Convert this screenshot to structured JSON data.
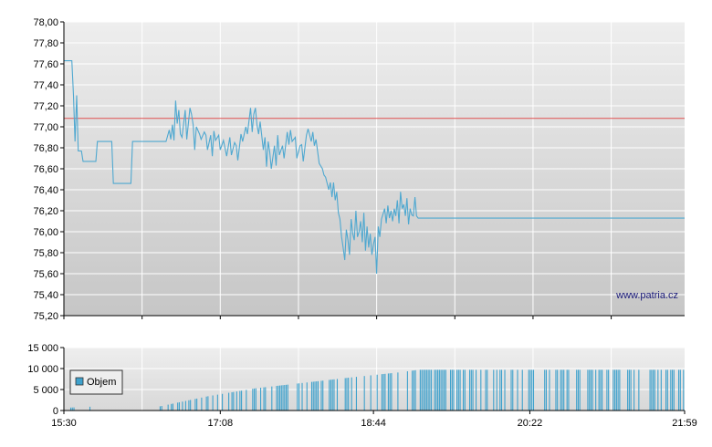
{
  "watermark": "www.patria.cz",
  "colors": {
    "price_line": "#4fa8d0",
    "reference_line": "#e05050",
    "volume_bar": "#3ea1cc",
    "grid": "#ffffff",
    "plot_bg_top": "#ececec",
    "plot_bg_bottom": "#c8c8c8"
  },
  "chart_data": [
    {
      "type": "line",
      "title": "",
      "xlabel": "",
      "ylabel": "",
      "ylim": [
        75.2,
        78.0
      ],
      "y_ticks": [
        "78,00",
        "77,80",
        "77,60",
        "77,40",
        "77,20",
        "77,00",
        "76,80",
        "76,60",
        "76,40",
        "76,20",
        "76,00",
        "75,80",
        "75,60",
        "75,40",
        "75,20"
      ],
      "reference_value": 77.08,
      "x_range": [
        "15:30",
        "21:59"
      ],
      "grid": true,
      "series": [
        {
          "values": [
            [
              "15:30",
              77.63
            ],
            [
              "15:35",
              77.63
            ],
            [
              "15:36",
              77.3
            ],
            [
              "15:37",
              76.86
            ],
            [
              "15:38",
              77.3
            ],
            [
              "15:39",
              76.77
            ],
            [
              "15:41",
              76.77
            ],
            [
              "15:42",
              76.67
            ],
            [
              "15:50",
              76.67
            ],
            [
              "15:51",
              76.86
            ],
            [
              "16:00",
              76.86
            ],
            [
              "16:01",
              76.46
            ],
            [
              "16:12",
              76.46
            ],
            [
              "16:13",
              76.86
            ],
            [
              "16:34",
              76.86
            ],
            [
              "16:36",
              76.97
            ],
            [
              "16:37",
              76.88
            ],
            [
              "16:38",
              77.02
            ],
            [
              "16:39",
              76.87
            ],
            [
              "16:40",
              77.25
            ],
            [
              "16:41",
              77.03
            ],
            [
              "16:42",
              77.16
            ],
            [
              "16:43",
              76.93
            ],
            [
              "16:44",
              76.9
            ],
            [
              "16:46",
              77.16
            ],
            [
              "16:47",
              76.88
            ],
            [
              "16:49",
              77.18
            ],
            [
              "16:50",
              77.12
            ],
            [
              "16:51",
              77.02
            ],
            [
              "16:52",
              76.78
            ],
            [
              "16:53",
              77.0
            ],
            [
              "16:55",
              76.93
            ],
            [
              "16:56",
              76.88
            ],
            [
              "16:58",
              76.95
            ],
            [
              "16:59",
              76.92
            ],
            [
              "17:00",
              76.78
            ],
            [
              "17:02",
              76.92
            ],
            [
              "17:03",
              76.72
            ],
            [
              "17:04",
              76.96
            ],
            [
              "17:05",
              76.87
            ],
            [
              "17:07",
              76.92
            ],
            [
              "17:08",
              76.78
            ],
            [
              "17:10",
              76.87
            ],
            [
              "17:12",
              76.72
            ],
            [
              "17:14",
              76.9
            ],
            [
              "17:15",
              76.73
            ],
            [
              "17:17",
              76.85
            ],
            [
              "17:18",
              76.82
            ],
            [
              "17:19",
              76.68
            ],
            [
              "17:21",
              76.93
            ],
            [
              "17:22",
              76.86
            ],
            [
              "17:24",
              77.0
            ],
            [
              "17:25",
              76.93
            ],
            [
              "17:27",
              77.18
            ],
            [
              "17:28",
              76.95
            ],
            [
              "17:29",
              77.12
            ],
            [
              "17:30",
              77.18
            ],
            [
              "17:31",
              77.02
            ],
            [
              "17:32",
              76.93
            ],
            [
              "17:33",
              77.05
            ],
            [
              "17:35",
              76.78
            ],
            [
              "17:36",
              76.9
            ],
            [
              "17:37",
              76.62
            ],
            [
              "17:38",
              76.86
            ],
            [
              "17:39",
              76.76
            ],
            [
              "17:40",
              76.6
            ],
            [
              "17:42",
              76.82
            ],
            [
              "17:43",
              76.63
            ],
            [
              "17:44",
              76.92
            ],
            [
              "17:45",
              76.73
            ],
            [
              "17:47",
              76.82
            ],
            [
              "17:48",
              76.7
            ],
            [
              "17:50",
              76.95
            ],
            [
              "17:51",
              76.83
            ],
            [
              "17:52",
              76.97
            ],
            [
              "17:53",
              76.86
            ],
            [
              "17:55",
              76.9
            ],
            [
              "17:56",
              76.7
            ],
            [
              "17:58",
              76.82
            ],
            [
              "17:59",
              76.83
            ],
            [
              "18:00",
              76.67
            ],
            [
              "18:02",
              76.92
            ],
            [
              "18:03",
              76.98
            ],
            [
              "18:05",
              76.86
            ],
            [
              "18:06",
              76.95
            ],
            [
              "18:07",
              76.82
            ],
            [
              "18:08",
              76.88
            ],
            [
              "18:10",
              76.65
            ],
            [
              "18:12",
              76.6
            ],
            [
              "18:13",
              76.54
            ],
            [
              "18:14",
              76.52
            ],
            [
              "18:16",
              76.4
            ],
            [
              "18:17",
              76.47
            ],
            [
              "18:18",
              76.33
            ],
            [
              "18:19",
              76.47
            ],
            [
              "18:20",
              76.3
            ],
            [
              "18:21",
              76.38
            ],
            [
              "18:22",
              76.18
            ],
            [
              "18:23",
              76.12
            ],
            [
              "18:24",
              75.95
            ],
            [
              "18:25",
              75.85
            ],
            [
              "18:26",
              75.73
            ],
            [
              "18:27",
              76.02
            ],
            [
              "18:28",
              75.92
            ],
            [
              "18:29",
              75.78
            ],
            [
              "18:30",
              76.12
            ],
            [
              "18:31",
              75.98
            ],
            [
              "18:32",
              75.92
            ],
            [
              "18:33",
              76.2
            ],
            [
              "18:34",
              75.95
            ],
            [
              "18:35",
              76.0
            ],
            [
              "18:36",
              76.1
            ],
            [
              "18:37",
              75.9
            ],
            [
              "18:38",
              76.18
            ],
            [
              "18:39",
              75.82
            ],
            [
              "18:40",
              76.05
            ],
            [
              "18:41",
              75.85
            ],
            [
              "18:42",
              75.98
            ],
            [
              "18:43",
              75.78
            ],
            [
              "18:44",
              75.88
            ],
            [
              "18:45",
              75.95
            ],
            [
              "18:46",
              75.6
            ],
            [
              "18:47",
              76.05
            ],
            [
              "18:48",
              75.95
            ],
            [
              "18:49",
              76.12
            ],
            [
              "18:51",
              76.22
            ],
            [
              "18:52",
              76.08
            ],
            [
              "18:53",
              76.25
            ],
            [
              "18:54",
              76.13
            ],
            [
              "18:55",
              76.2
            ],
            [
              "18:56",
              76.1
            ],
            [
              "18:57",
              76.22
            ],
            [
              "18:58",
              76.15
            ],
            [
              "18:59",
              76.3
            ],
            [
              "19:00",
              76.08
            ],
            [
              "19:01",
              76.38
            ],
            [
              "19:02",
              76.22
            ],
            [
              "19:03",
              76.26
            ],
            [
              "19:04",
              76.15
            ],
            [
              "19:05",
              76.32
            ],
            [
              "19:06",
              76.07
            ],
            [
              "19:07",
              76.22
            ],
            [
              "19:08",
              76.16
            ],
            [
              "19:09",
              76.15
            ],
            [
              "19:10",
              76.33
            ],
            [
              "19:11",
              76.15
            ],
            [
              "19:12",
              76.13
            ],
            [
              "21:59",
              76.13
            ]
          ]
        }
      ]
    },
    {
      "type": "bar",
      "title": "",
      "xlabel": "",
      "ylabel": "",
      "ylim": [
        0,
        15000
      ],
      "y_ticks": [
        "15 000",
        "10 000",
        "5 000",
        "0"
      ],
      "x_ticks": [
        "15:30",
        "17:08",
        "18:44",
        "20:22",
        "21:59"
      ],
      "legend": "Objem",
      "legend_placement": "left",
      "cumulative_volume": [
        [
          "15:34",
          700
        ],
        [
          "15:45",
          900
        ],
        [
          "16:30",
          1000
        ],
        [
          "16:45",
          2200
        ],
        [
          "17:00",
          3400
        ],
        [
          "17:30",
          5300
        ],
        [
          "18:00",
          6600
        ],
        [
          "18:30",
          7900
        ],
        [
          "19:00",
          9100
        ],
        [
          "19:12",
          9700
        ],
        [
          "21:59",
          9700
        ]
      ]
    }
  ]
}
